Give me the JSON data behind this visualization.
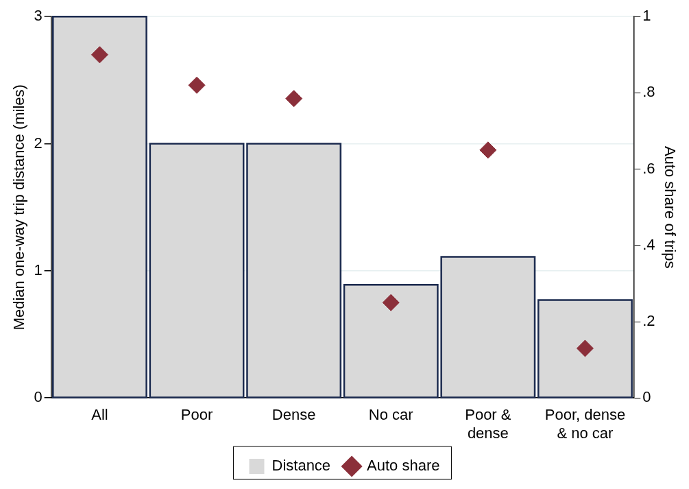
{
  "chart_data": {
    "type": "bar",
    "categories": [
      "All",
      "Poor",
      "Dense",
      "No car",
      "Poor & dense",
      "Poor, dense & no car"
    ],
    "series": [
      {
        "name": "Distance",
        "color": "#d9d9d9",
        "values": [
          3,
          2,
          2,
          0.89,
          1.11,
          0.77
        ]
      },
      {
        "name": "Auto share",
        "type": "scatter",
        "axis": "y2",
        "color": "#8b2f3a",
        "marker": "diamond",
        "values": [
          0.9,
          0.82,
          0.785,
          0.25,
          0.65,
          0.13
        ]
      }
    ],
    "ylabel": "Median one-way trip distance (miles)",
    "y2label": "Auto share of trips",
    "ylim": [
      0,
      3
    ],
    "yticks": [
      0,
      1,
      2,
      3
    ],
    "y2lim": [
      0,
      1
    ],
    "y2ticks": [
      0,
      {
        "value": 0.2,
        "label": ".2"
      },
      {
        "value": 0.4,
        "label": ".4"
      },
      {
        "value": 0.6,
        "label": ".6"
      },
      {
        "value": 0.8,
        "label": ".8"
      },
      1
    ],
    "grid": "y",
    "legend": "bottom"
  }
}
